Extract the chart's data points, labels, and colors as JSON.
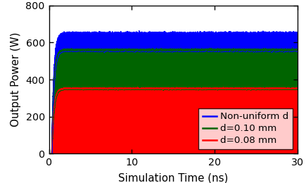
{
  "title": "",
  "xlabel": "Simulation Time (ns)",
  "ylabel": "Output Power (W)",
  "xlim": [
    0,
    30
  ],
  "ylim": [
    0,
    800
  ],
  "xticks": [
    0,
    10,
    20,
    30
  ],
  "yticks": [
    0,
    200,
    400,
    600,
    800
  ],
  "blue_steady": 648,
  "blue_peak": 668,
  "green_steady": 560,
  "green_peak": 578,
  "red_steady": 352,
  "red_peak": 362,
  "rise_time": 1.5,
  "t_start": 0.3,
  "t_end": 30,
  "colors": {
    "blue": "#0000FF",
    "green": "#006400",
    "red": "#FF0000"
  },
  "legend_labels": [
    "Non-uniform d",
    "d=0.10 mm",
    "d=0.08 mm"
  ],
  "background_color": "#FFFFFF",
  "figsize": [
    3.6,
    2.15
  ],
  "dpi": 121
}
